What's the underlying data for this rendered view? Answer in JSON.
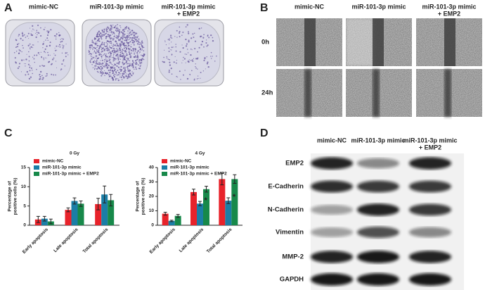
{
  "panels": {
    "A": {
      "label": "A",
      "columns": [
        [
          "mimic-NC"
        ],
        [
          "miR-101-3p mimic"
        ],
        [
          "miR-101-3p mimic",
          "+ EMP2"
        ]
      ]
    },
    "B": {
      "label": "B",
      "columns": [
        [
          "mimic-NC"
        ],
        [
          "miR-101-3p mimic"
        ],
        [
          "miR-101-3p mimic",
          "+ EMP2"
        ]
      ],
      "rows": [
        "0h",
        "24h"
      ]
    },
    "C": {
      "label": "C"
    },
    "D": {
      "label": "D",
      "columns": [
        [
          "mimic-NC"
        ],
        [
          "miR-101-3p mimic"
        ],
        [
          "miR-101-3p mimic",
          "+ EMP2"
        ]
      ],
      "rows": [
        "EMP2",
        "E-Cadherin",
        "N-Cadherin",
        "Vimentin",
        "MMP-2",
        "GAPDH"
      ]
    }
  },
  "chart_data": [
    {
      "type": "bar",
      "title": "0 Gy",
      "y_label": [
        "Percentage of",
        "positive cells (%)"
      ],
      "categories": [
        "Early apoptosis",
        "Late apoptosis",
        "Total apoptosis"
      ],
      "series": [
        {
          "name": "mimic-NC",
          "color": "#e8232b",
          "values": [
            1.5,
            4.0,
            5.5
          ],
          "errors": [
            0.8,
            0.5,
            1.5
          ]
        },
        {
          "name": "miR-101-3p mimic",
          "color": "#1b7ea6",
          "values": [
            1.7,
            6.3,
            8.0
          ],
          "errors": [
            0.6,
            0.8,
            2.2
          ]
        },
        {
          "name": "miR-101-3p mimic + EMP2",
          "color": "#17894a",
          "values": [
            1.0,
            5.6,
            6.5
          ],
          "errors": [
            0.6,
            0.7,
            1.5
          ]
        }
      ],
      "ylim": [
        0,
        15
      ],
      "yticks": [
        0,
        5,
        10,
        15
      ],
      "legend": "upper left",
      "annotations": []
    },
    {
      "type": "bar",
      "title": "4 Gy",
      "y_label": [
        "Percentage of",
        "positive cells (%)"
      ],
      "categories": [
        "Early apoptosis",
        "Late apoptosis",
        "Total apoptosis"
      ],
      "series": [
        {
          "name": "mimic-NC",
          "color": "#e8232b",
          "values": [
            8,
            23,
            32
          ],
          "errors": [
            1,
            2,
            4
          ]
        },
        {
          "name": "miR-101-3p mimic",
          "color": "#1b7ea6",
          "values": [
            3,
            15,
            17
          ],
          "errors": [
            0.5,
            1.5,
            2
          ]
        },
        {
          "name": "miR-101-3p mimic + EMP2",
          "color": "#17894a",
          "values": [
            6.5,
            25,
            32
          ],
          "errors": [
            1,
            2,
            3
          ]
        }
      ],
      "ylim": [
        0,
        40
      ],
      "yticks": [
        0,
        10,
        20,
        30,
        40
      ],
      "legend": "upper left",
      "annotations": [
        {
          "text": "*",
          "category": "Late apoptosis",
          "series": "miR-101-3p mimic"
        },
        {
          "text": "*",
          "category": "Total apoptosis",
          "series": "miR-101-3p mimic"
        }
      ]
    }
  ]
}
